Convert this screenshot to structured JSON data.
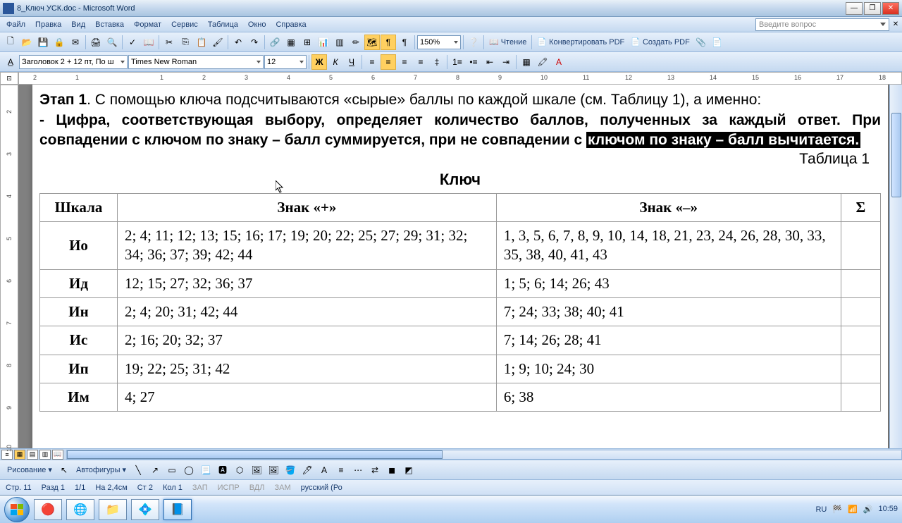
{
  "titlebar": {
    "text": "8_Ключ УСК.doc - Microsoft Word"
  },
  "menus": [
    "Файл",
    "Правка",
    "Вид",
    "Вставка",
    "Формат",
    "Сервис",
    "Таблица",
    "Окно",
    "Справка"
  ],
  "question_placeholder": "Введите вопрос",
  "toolbar1": {
    "zoom": "150%",
    "reading": "Чтение",
    "convert_pdf": "Конвертировать PDF",
    "create_pdf": "Создать PDF"
  },
  "toolbar2": {
    "style": "Заголовок 2 + 12 пт, По ш",
    "font": "Times New Roman",
    "size": "12"
  },
  "ruler_h": [
    2,
    1,
    "",
    1,
    2,
    3,
    4,
    5,
    6,
    7,
    8,
    9,
    10,
    11,
    12,
    13,
    14,
    15,
    16,
    17,
    18
  ],
  "ruler_v": [
    2,
    3,
    4,
    5,
    6,
    7,
    8,
    9,
    10
  ],
  "document": {
    "stage_bold": "Этап 1",
    "stage_rest": ". С помощью ключа подсчитываются «сырые» баллы по каждой шкале (см. Таблицу 1), а именно:",
    "para2_pre": "- Цифра, соответствующая выбору, определяет количество баллов, полученных за каждый ответ. При совпадении с ключом по знаку – балл суммируется, при не совпадении с ",
    "para2_highlight": "ключом по знаку – балл вычитается.",
    "table_label": "Таблица 1",
    "table_title": "Ключ",
    "columns": [
      "Шкала",
      "Знак «+»",
      "Знак «–»",
      "Σ"
    ],
    "col_widths": [
      "90px",
      "440px",
      "400px",
      "46px"
    ],
    "rows": [
      {
        "scale": "Ио",
        "plus": "2; 4; 11; 12; 13; 15; 16; 17; 19; 20; 22; 25; 27; 29; 31; 32; 34; 36; 37; 39; 42; 44",
        "minus": "1, 3, 5, 6, 7, 8, 9, 10, 14, 18, 21, 23, 24, 26, 28, 30, 33, 35, 38, 40, 41, 43",
        "sigma": ""
      },
      {
        "scale": "Ид",
        "plus": "12; 15; 27; 32; 36; 37",
        "minus": "1; 5; 6; 14; 26; 43",
        "sigma": ""
      },
      {
        "scale": "Ин",
        "plus": "2; 4; 20; 31; 42; 44",
        "minus": "7; 24; 33; 38; 40; 41",
        "sigma": ""
      },
      {
        "scale": "Ис",
        "plus": "2; 16; 20; 32; 37",
        "minus": "7; 14; 26; 28; 41",
        "sigma": ""
      },
      {
        "scale": "Ип",
        "plus": "19; 22; 25; 31; 42",
        "minus": "1; 9; 10; 24; 30",
        "sigma": ""
      },
      {
        "scale": "Им",
        "plus": "4; 27",
        "minus": "6; 38",
        "sigma": ""
      }
    ]
  },
  "bottom_toolbar": {
    "drawing": "Рисование",
    "autoshapes": "Автофигуры"
  },
  "status": {
    "page": "Стр. 11",
    "section": "Разд 1",
    "pages": "1/1",
    "at": "На 2,4см",
    "col": "Ст 2",
    "ln": "Кол 1",
    "dim": [
      "ЗАП",
      "ИСПР",
      "ВДЛ",
      "ЗАМ"
    ],
    "lang": "русский (Ро"
  },
  "tray": {
    "lang": "RU",
    "time": "10:59"
  },
  "colors": {
    "highlight_bg": "#000000",
    "highlight_fg": "#ffffff"
  }
}
